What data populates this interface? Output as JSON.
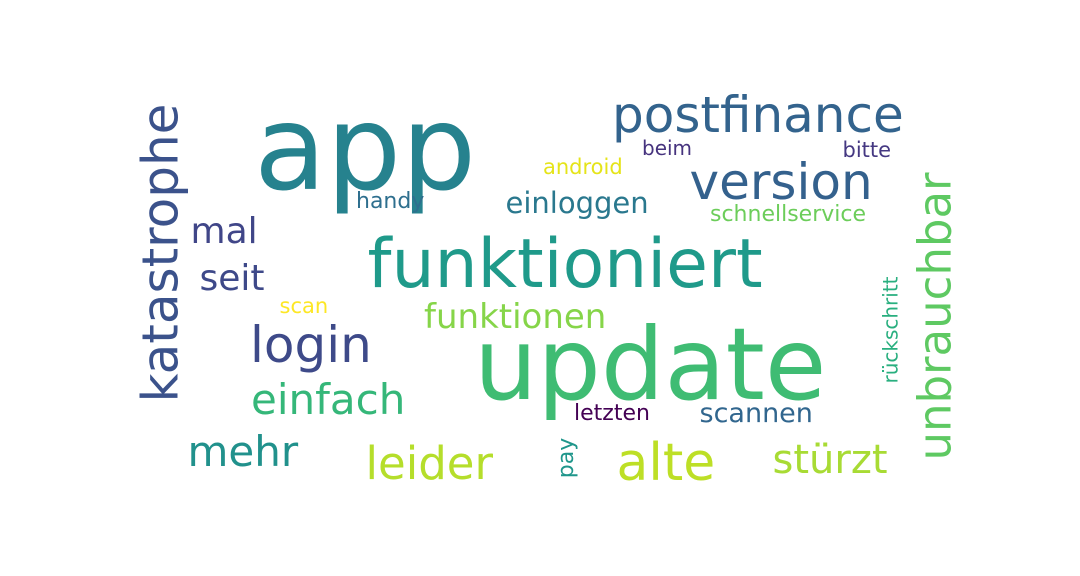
{
  "words": [
    {
      "key": "app",
      "text": "app",
      "color": "#26828e"
    },
    {
      "key": "update",
      "text": "update",
      "color": "#3fbc73"
    },
    {
      "key": "funktioniert",
      "text": "funktioniert",
      "color": "#1f9a8a"
    },
    {
      "key": "postfinance",
      "text": "postfinance",
      "color": "#33638d"
    },
    {
      "key": "version",
      "text": "version",
      "color": "#34618d"
    },
    {
      "key": "katastrophe",
      "text": "katastrophe",
      "color": "#3b528b"
    },
    {
      "key": "unbrauchbar",
      "text": "unbrauchbar",
      "color": "#5ec962"
    },
    {
      "key": "login",
      "text": "login",
      "color": "#3e4a89"
    },
    {
      "key": "einfach",
      "text": "einfach",
      "color": "#35b779"
    },
    {
      "key": "leider",
      "text": "leider",
      "color": "#b5de2b"
    },
    {
      "key": "alte",
      "text": "alte",
      "color": "#bddf26"
    },
    {
      "key": "stürzt",
      "text": "stürzt",
      "color": "#a8db34"
    },
    {
      "key": "mehr",
      "text": "mehr",
      "color": "#21918c"
    },
    {
      "key": "seit",
      "text": "seit",
      "color": "#3e4989"
    },
    {
      "key": "mal",
      "text": "mal",
      "color": "#404688"
    },
    {
      "key": "funktionen",
      "text": "funktionen",
      "color": "#86d549"
    },
    {
      "key": "einloggen",
      "text": "einloggen",
      "color": "#2a788e"
    },
    {
      "key": "scannen",
      "text": "scannen",
      "color": "#31668e"
    },
    {
      "key": "schnellservice",
      "text": "schnellservice",
      "color": "#6ccd5a"
    },
    {
      "key": "rückschritt",
      "text": "rückschritt",
      "color": "#29af7f"
    },
    {
      "key": "handy",
      "text": "handy",
      "color": "#2e6f8e"
    },
    {
      "key": "android",
      "text": "android",
      "color": "#e5e419"
    },
    {
      "key": "beim",
      "text": "beim",
      "color": "#46337e"
    },
    {
      "key": "bitte",
      "text": "bitte",
      "color": "#453882"
    },
    {
      "key": "scan",
      "text": "scan",
      "color": "#fde725"
    },
    {
      "key": "letzten",
      "text": "letzten",
      "color": "#440154"
    },
    {
      "key": "pay",
      "text": "pay",
      "color": "#1f968b"
    }
  ]
}
